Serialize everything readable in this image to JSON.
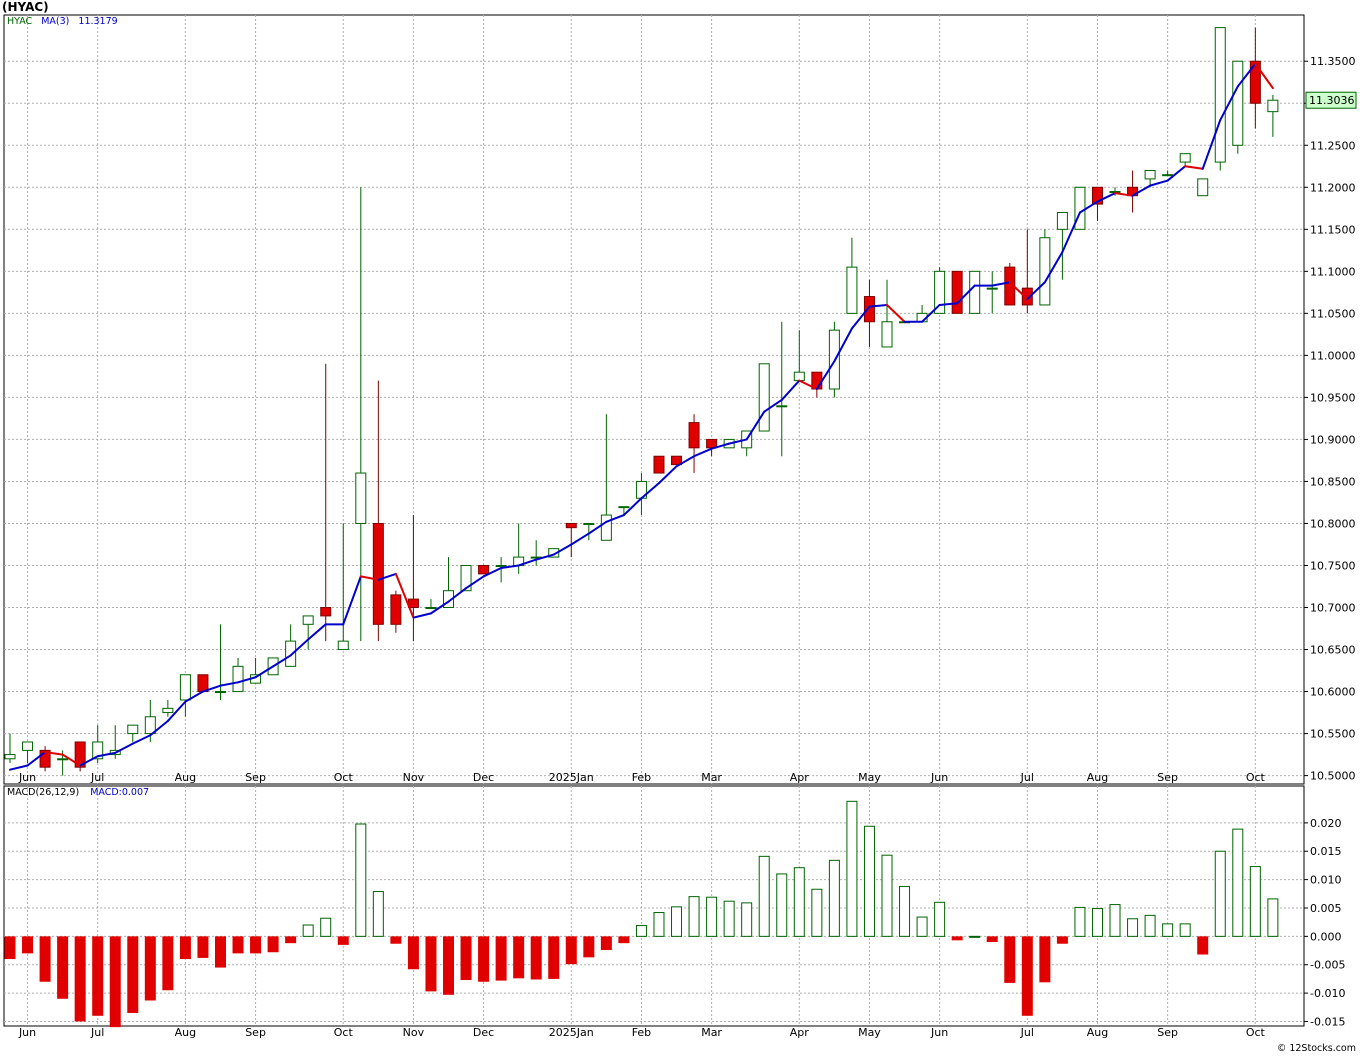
{
  "title": "(HYAC)",
  "copyright": "© 12Stocks.com",
  "colors": {
    "up": "#006400",
    "down": "#e00000",
    "ma": "#0000cc",
    "grid": "#b0b0b0",
    "priceTag": "#ccffcc"
  },
  "price_panel": {
    "legend": {
      "ticker": "HYAC",
      "ma_label": "MA(3)",
      "ma_value": "11.3179"
    },
    "last_price": "11.3036"
  },
  "macd_panel": {
    "legend": {
      "name": "MACD(26,12,9)",
      "value_label": "MACD:0.007"
    }
  },
  "chart_data": [
    {
      "type": "candlestick",
      "ylim": [
        10.49,
        11.405
      ],
      "yticks": [
        "10.5000",
        "10.5500",
        "10.6000",
        "10.6500",
        "10.7000",
        "10.7500",
        "10.8000",
        "10.8500",
        "10.9000",
        "10.9500",
        "11.0000",
        "11.0500",
        "11.1000",
        "11.1500",
        "11.2000",
        "11.2500",
        "11.3000",
        "11.3500"
      ],
      "grid": true,
      "x_labels": [
        {
          "label": "Jun",
          "i": 1
        },
        {
          "label": "Jul",
          "i": 5
        },
        {
          "label": "Aug",
          "i": 10
        },
        {
          "label": "Sep",
          "i": 14
        },
        {
          "label": "Oct",
          "i": 19
        },
        {
          "label": "Nov",
          "i": 23
        },
        {
          "label": "Dec",
          "i": 27
        },
        {
          "label": "2025Jan",
          "i": 32
        },
        {
          "label": "Feb",
          "i": 36
        },
        {
          "label": "Mar",
          "i": 40
        },
        {
          "label": "Apr",
          "i": 45
        },
        {
          "label": "May",
          "i": 49
        },
        {
          "label": "Jun",
          "i": 53
        },
        {
          "label": "Jul",
          "i": 58
        },
        {
          "label": "Aug",
          "i": 62
        },
        {
          "label": "Sep",
          "i": 66
        },
        {
          "label": "Oct",
          "i": 71
        }
      ],
      "candles": [
        {
          "o": 10.52,
          "h": 10.55,
          "l": 10.515,
          "c": 10.525
        },
        {
          "o": 10.53,
          "h": 10.54,
          "l": 10.515,
          "c": 10.54
        },
        {
          "o": 10.53,
          "h": 10.535,
          "l": 10.505,
          "c": 10.51
        },
        {
          "o": 10.52,
          "h": 10.53,
          "l": 10.5,
          "c": 10.52
        },
        {
          "o": 10.54,
          "h": 10.54,
          "l": 10.505,
          "c": 10.51
        },
        {
          "o": 10.52,
          "h": 10.56,
          "l": 10.515,
          "c": 10.54
        },
        {
          "o": 10.525,
          "h": 10.56,
          "l": 10.52,
          "c": 10.53
        },
        {
          "o": 10.55,
          "h": 10.56,
          "l": 10.54,
          "c": 10.56
        },
        {
          "o": 10.55,
          "h": 10.59,
          "l": 10.54,
          "c": 10.57
        },
        {
          "o": 10.575,
          "h": 10.59,
          "l": 10.57,
          "c": 10.58
        },
        {
          "o": 10.59,
          "h": 10.62,
          "l": 10.57,
          "c": 10.62
        },
        {
          "o": 10.62,
          "h": 10.62,
          "l": 10.6,
          "c": 10.6
        },
        {
          "o": 10.6,
          "h": 10.68,
          "l": 10.59,
          "c": 10.6
        },
        {
          "o": 10.6,
          "h": 10.64,
          "l": 10.6,
          "c": 10.63
        },
        {
          "o": 10.61,
          "h": 10.64,
          "l": 10.61,
          "c": 10.62
        },
        {
          "o": 10.62,
          "h": 10.64,
          "l": 10.62,
          "c": 10.64
        },
        {
          "o": 10.63,
          "h": 10.68,
          "l": 10.63,
          "c": 10.66
        },
        {
          "o": 10.68,
          "h": 10.69,
          "l": 10.65,
          "c": 10.69
        },
        {
          "o": 10.7,
          "h": 10.99,
          "l": 10.66,
          "c": 10.69
        },
        {
          "o": 10.65,
          "h": 10.8,
          "l": 10.65,
          "c": 10.66
        },
        {
          "o": 10.8,
          "h": 11.2,
          "l": 10.66,
          "c": 10.86
        },
        {
          "o": 10.8,
          "h": 10.97,
          "l": 10.66,
          "c": 10.68
        },
        {
          "o": 10.715,
          "h": 10.72,
          "l": 10.67,
          "c": 10.68
        },
        {
          "o": 10.71,
          "h": 10.81,
          "l": 10.66,
          "c": 10.7
        },
        {
          "o": 10.7,
          "h": 10.71,
          "l": 10.7,
          "c": 10.7
        },
        {
          "o": 10.7,
          "h": 10.76,
          "l": 10.7,
          "c": 10.72
        },
        {
          "o": 10.72,
          "h": 10.75,
          "l": 10.72,
          "c": 10.75
        },
        {
          "o": 10.75,
          "h": 10.75,
          "l": 10.74,
          "c": 10.74
        },
        {
          "o": 10.75,
          "h": 10.76,
          "l": 10.73,
          "c": 10.75
        },
        {
          "o": 10.75,
          "h": 10.8,
          "l": 10.74,
          "c": 10.76
        },
        {
          "o": 10.76,
          "h": 10.78,
          "l": 10.75,
          "c": 10.76
        },
        {
          "o": 10.76,
          "h": 10.77,
          "l": 10.76,
          "c": 10.77
        },
        {
          "o": 10.8,
          "h": 10.8,
          "l": 10.76,
          "c": 10.795
        },
        {
          "o": 10.8,
          "h": 10.8,
          "l": 10.78,
          "c": 10.8
        },
        {
          "o": 10.78,
          "h": 10.93,
          "l": 10.78,
          "c": 10.81
        },
        {
          "o": 10.82,
          "h": 10.82,
          "l": 10.81,
          "c": 10.82
        },
        {
          "o": 10.83,
          "h": 10.86,
          "l": 10.81,
          "c": 10.85
        },
        {
          "o": 10.88,
          "h": 10.88,
          "l": 10.86,
          "c": 10.86
        },
        {
          "o": 10.88,
          "h": 10.88,
          "l": 10.87,
          "c": 10.87
        },
        {
          "o": 10.92,
          "h": 10.93,
          "l": 10.86,
          "c": 10.89
        },
        {
          "o": 10.9,
          "h": 10.9,
          "l": 10.88,
          "c": 10.89
        },
        {
          "o": 10.89,
          "h": 10.9,
          "l": 10.89,
          "c": 10.9
        },
        {
          "o": 10.89,
          "h": 10.91,
          "l": 10.88,
          "c": 10.91
        },
        {
          "o": 10.91,
          "h": 10.99,
          "l": 10.91,
          "c": 10.99
        },
        {
          "o": 10.94,
          "h": 11.04,
          "l": 10.88,
          "c": 10.94
        },
        {
          "o": 10.97,
          "h": 11.03,
          "l": 10.97,
          "c": 10.98
        },
        {
          "o": 10.98,
          "h": 10.98,
          "l": 10.95,
          "c": 10.96
        },
        {
          "o": 10.96,
          "h": 11.04,
          "l": 10.95,
          "c": 11.03
        },
        {
          "o": 11.05,
          "h": 11.14,
          "l": 11.05,
          "c": 11.105
        },
        {
          "o": 11.07,
          "h": 11.09,
          "l": 11.01,
          "c": 11.04
        },
        {
          "o": 11.01,
          "h": 11.09,
          "l": 11.01,
          "c": 11.04
        },
        {
          "o": 11.04,
          "h": 11.04,
          "l": 11.04,
          "c": 11.04
        },
        {
          "o": 11.04,
          "h": 11.06,
          "l": 11.04,
          "c": 11.05
        },
        {
          "o": 11.05,
          "h": 11.105,
          "l": 11.05,
          "c": 11.1
        },
        {
          "o": 11.1,
          "h": 11.1,
          "l": 11.05,
          "c": 11.05
        },
        {
          "o": 11.05,
          "h": 11.1,
          "l": 11.05,
          "c": 11.1
        },
        {
          "o": 11.08,
          "h": 11.1,
          "l": 11.05,
          "c": 11.08
        },
        {
          "o": 11.105,
          "h": 11.11,
          "l": 11.06,
          "c": 11.06
        },
        {
          "o": 11.08,
          "h": 11.15,
          "l": 11.05,
          "c": 11.06
        },
        {
          "o": 11.06,
          "h": 11.15,
          "l": 11.06,
          "c": 11.14
        },
        {
          "o": 11.15,
          "h": 11.17,
          "l": 11.09,
          "c": 11.17
        },
        {
          "o": 11.15,
          "h": 11.2,
          "l": 11.15,
          "c": 11.2
        },
        {
          "o": 11.2,
          "h": 11.2,
          "l": 11.16,
          "c": 11.18
        },
        {
          "o": 11.195,
          "h": 11.2,
          "l": 11.19,
          "c": 11.195
        },
        {
          "o": 11.2,
          "h": 11.22,
          "l": 11.17,
          "c": 11.19
        },
        {
          "o": 11.21,
          "h": 11.22,
          "l": 11.2,
          "c": 11.22
        },
        {
          "o": 11.215,
          "h": 11.22,
          "l": 11.215,
          "c": 11.215
        },
        {
          "o": 11.23,
          "h": 11.24,
          "l": 11.225,
          "c": 11.24
        },
        {
          "o": 11.19,
          "h": 11.21,
          "l": 11.19,
          "c": 11.21
        },
        {
          "o": 11.23,
          "h": 11.39,
          "l": 11.22,
          "c": 11.39
        },
        {
          "o": 11.25,
          "h": 11.35,
          "l": 11.24,
          "c": 11.35
        },
        {
          "o": 11.35,
          "h": 11.39,
          "l": 11.27,
          "c": 11.3
        },
        {
          "o": 11.29,
          "h": 11.31,
          "l": 11.26,
          "c": 11.3036
        }
      ],
      "ma3": [
        10.507,
        10.512,
        10.528,
        10.525,
        10.512,
        10.523,
        10.527,
        10.538,
        10.548,
        10.565,
        10.588,
        10.6,
        10.607,
        10.611,
        10.617,
        10.63,
        10.643,
        10.662,
        10.68,
        10.68,
        10.737,
        10.733,
        10.74,
        10.688,
        10.693,
        10.707,
        10.723,
        10.737,
        10.747,
        10.75,
        10.757,
        10.763,
        10.775,
        10.788,
        10.802,
        10.81,
        10.83,
        10.848,
        10.868,
        10.88,
        10.889,
        10.895,
        10.9,
        10.933,
        10.947,
        10.97,
        10.96,
        10.993,
        11.032,
        11.058,
        11.06,
        11.04,
        11.04,
        11.06,
        11.062,
        11.083,
        11.083,
        11.087,
        11.067,
        11.087,
        11.123,
        11.17,
        11.183,
        11.193,
        11.19,
        11.202,
        11.208,
        11.225,
        11.222,
        11.28,
        11.32,
        11.347,
        11.318
      ]
    },
    {
      "type": "bar",
      "name": "MACD(26,12,9)",
      "ylim": [
        -0.0158,
        0.0265
      ],
      "yticks": [
        "-0.015",
        "-0.010",
        "-0.005",
        "0.000",
        "0.005",
        "0.010",
        "0.015",
        "0.020"
      ],
      "grid": true,
      "values": [
        -0.004,
        -0.003,
        -0.008,
        -0.011,
        -0.015,
        -0.014,
        -0.016,
        -0.0135,
        -0.0113,
        -0.0095,
        -0.004,
        -0.0038,
        -0.0055,
        -0.003,
        -0.003,
        -0.0028,
        -0.0012,
        0.002,
        0.0032,
        -0.0015,
        0.0198,
        0.0079,
        -0.0013,
        -0.0058,
        -0.0097,
        -0.0103,
        -0.0077,
        -0.008,
        -0.0078,
        -0.0074,
        -0.0076,
        -0.0075,
        -0.0049,
        -0.0037,
        -0.0024,
        -0.0012,
        0.0019,
        0.0042,
        0.0052,
        0.007,
        0.0069,
        0.0062,
        0.0059,
        0.0141,
        0.011,
        0.0121,
        0.0083,
        0.0134,
        0.0238,
        0.0194,
        0.0143,
        0.0088,
        0.0034,
        0.006,
        -0.0007,
        0,
        -0.001,
        -0.0082,
        -0.014,
        -0.0081,
        -0.0013,
        0.0051,
        0.0049,
        0.0056,
        0.0031,
        0.0037,
        0.0022,
        0.0022,
        -0.0032,
        0.015,
        0.0189,
        0.0123,
        0.0066
      ]
    }
  ]
}
